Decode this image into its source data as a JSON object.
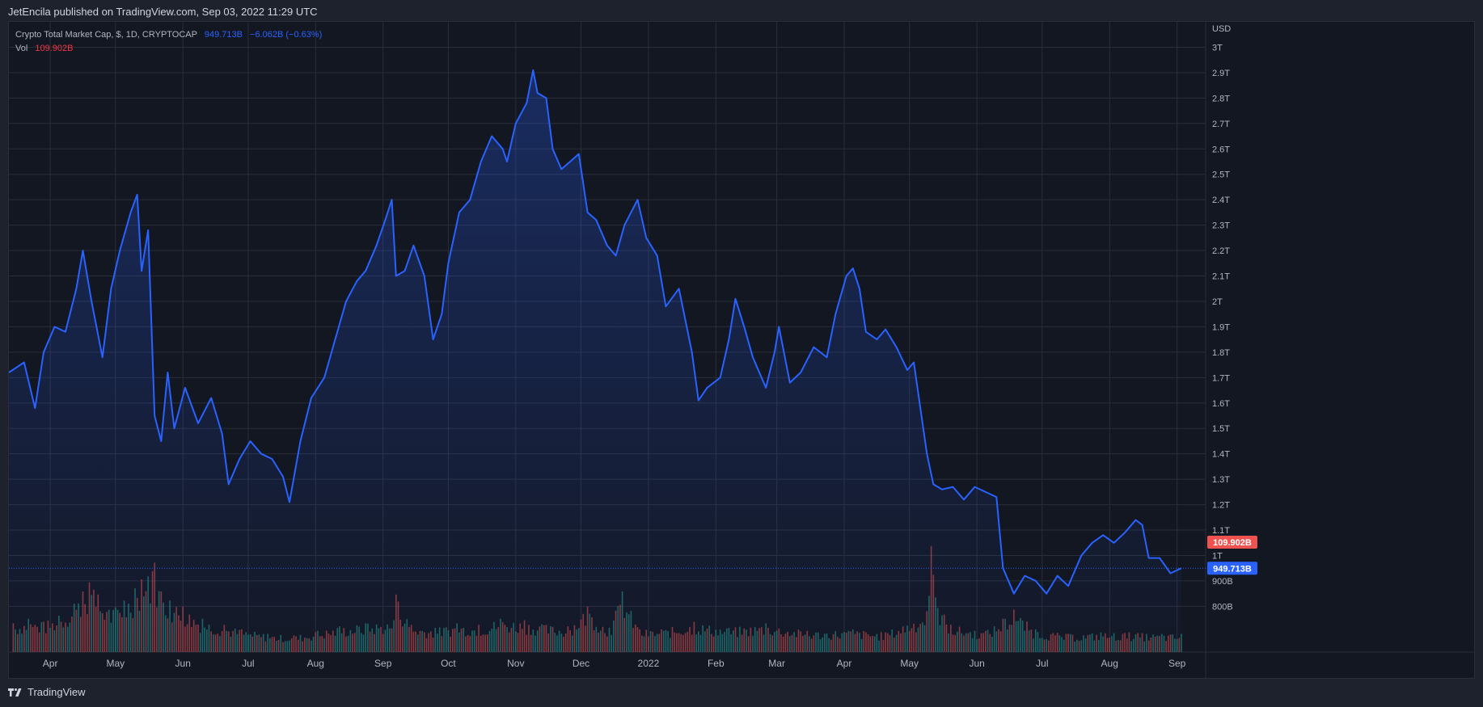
{
  "header": {
    "published": "JetEncila published on TradingView.com, Sep 03, 2022 11:29 UTC"
  },
  "legend": {
    "symbol": "Crypto Total Market Cap, $, 1D, CRYPTOCAP",
    "price": "949.713B",
    "change": "−6.062B (−0.63%)",
    "vol_label": "Vol",
    "vol_value": "109.902B"
  },
  "footer": {
    "brand": "TradingView",
    "logo_icon": "tradingview-logo-icon"
  },
  "colors": {
    "line": "#2962ff",
    "up_volume": "#26a69a",
    "down_volume": "#ef5350",
    "background": "#131722",
    "grid": "#2a2e39",
    "text": "#b2b5be"
  },
  "chart_data": {
    "type": "area",
    "currency_label": "USD",
    "y_ticks": [
      "800B",
      "900B",
      "1T",
      "1.1T",
      "1.2T",
      "1.3T",
      "1.4T",
      "1.5T",
      "1.6T",
      "1.7T",
      "1.8T",
      "1.9T",
      "2T",
      "2.1T",
      "2.2T",
      "2.3T",
      "2.4T",
      "2.5T",
      "2.6T",
      "2.7T",
      "2.8T",
      "2.9T",
      "3T"
    ],
    "y_tick_values": [
      0.8,
      0.9,
      1.0,
      1.1,
      1.2,
      1.3,
      1.4,
      1.5,
      1.6,
      1.7,
      1.8,
      1.9,
      2.0,
      2.1,
      2.2,
      2.3,
      2.4,
      2.5,
      2.6,
      2.7,
      2.8,
      2.9,
      3.0
    ],
    "ylim": [
      0.62,
      3.1
    ],
    "x_labels": [
      {
        "label": "Apr",
        "date": "2021-04-01"
      },
      {
        "label": "May",
        "date": "2021-05-01"
      },
      {
        "label": "Jun",
        "date": "2021-06-01"
      },
      {
        "label": "Jul",
        "date": "2021-07-01"
      },
      {
        "label": "Aug",
        "date": "2021-08-01"
      },
      {
        "label": "Sep",
        "date": "2021-09-01"
      },
      {
        "label": "Oct",
        "date": "2021-10-01"
      },
      {
        "label": "Nov",
        "date": "2021-11-01"
      },
      {
        "label": "Dec",
        "date": "2021-12-01"
      },
      {
        "label": "2022",
        "date": "2022-01-01"
      },
      {
        "label": "Feb",
        "date": "2022-02-01"
      },
      {
        "label": "Mar",
        "date": "2022-03-01"
      },
      {
        "label": "Apr",
        "date": "2022-04-01"
      },
      {
        "label": "May",
        "date": "2022-05-01"
      },
      {
        "label": "Jun",
        "date": "2022-06-01"
      },
      {
        "label": "Jul",
        "date": "2022-07-01"
      },
      {
        "label": "Aug",
        "date": "2022-08-01"
      },
      {
        "label": "Sep",
        "date": "2022-09-01"
      }
    ],
    "x_range": [
      "2021-03-13",
      "2022-09-03"
    ],
    "unit": "trillion USD",
    "series": [
      {
        "name": "Crypto Total Market Cap",
        "points": [
          [
            "2021-03-13",
            1.72
          ],
          [
            "2021-03-20",
            1.76
          ],
          [
            "2021-03-25",
            1.58
          ],
          [
            "2021-03-29",
            1.8
          ],
          [
            "2021-04-03",
            1.9
          ],
          [
            "2021-04-08",
            1.88
          ],
          [
            "2021-04-13",
            2.05
          ],
          [
            "2021-04-16",
            2.2
          ],
          [
            "2021-04-20",
            2.0
          ],
          [
            "2021-04-25",
            1.78
          ],
          [
            "2021-04-29",
            2.05
          ],
          [
            "2021-05-03",
            2.2
          ],
          [
            "2021-05-08",
            2.35
          ],
          [
            "2021-05-11",
            2.42
          ],
          [
            "2021-05-13",
            2.12
          ],
          [
            "2021-05-16",
            2.28
          ],
          [
            "2021-05-19",
            1.55
          ],
          [
            "2021-05-22",
            1.45
          ],
          [
            "2021-05-25",
            1.72
          ],
          [
            "2021-05-28",
            1.5
          ],
          [
            "2021-06-02",
            1.66
          ],
          [
            "2021-06-08",
            1.52
          ],
          [
            "2021-06-14",
            1.62
          ],
          [
            "2021-06-19",
            1.48
          ],
          [
            "2021-06-22",
            1.28
          ],
          [
            "2021-06-27",
            1.38
          ],
          [
            "2021-07-02",
            1.45
          ],
          [
            "2021-07-07",
            1.4
          ],
          [
            "2021-07-12",
            1.38
          ],
          [
            "2021-07-17",
            1.31
          ],
          [
            "2021-07-20",
            1.21
          ],
          [
            "2021-07-25",
            1.45
          ],
          [
            "2021-07-30",
            1.62
          ],
          [
            "2021-08-05",
            1.7
          ],
          [
            "2021-08-10",
            1.85
          ],
          [
            "2021-08-15",
            2.0
          ],
          [
            "2021-08-20",
            2.08
          ],
          [
            "2021-08-24",
            2.12
          ],
          [
            "2021-08-29",
            2.22
          ],
          [
            "2021-09-02",
            2.32
          ],
          [
            "2021-09-05",
            2.4
          ],
          [
            "2021-09-07",
            2.1
          ],
          [
            "2021-09-11",
            2.12
          ],
          [
            "2021-09-15",
            2.22
          ],
          [
            "2021-09-20",
            2.1
          ],
          [
            "2021-09-24",
            1.85
          ],
          [
            "2021-09-28",
            1.95
          ],
          [
            "2021-10-01",
            2.15
          ],
          [
            "2021-10-06",
            2.35
          ],
          [
            "2021-10-11",
            2.4
          ],
          [
            "2021-10-16",
            2.55
          ],
          [
            "2021-10-21",
            2.65
          ],
          [
            "2021-10-26",
            2.6
          ],
          [
            "2021-10-28",
            2.55
          ],
          [
            "2021-11-01",
            2.7
          ],
          [
            "2021-11-06",
            2.78
          ],
          [
            "2021-11-09",
            2.91
          ],
          [
            "2021-11-11",
            2.82
          ],
          [
            "2021-11-15",
            2.8
          ],
          [
            "2021-11-18",
            2.6
          ],
          [
            "2021-11-22",
            2.52
          ],
          [
            "2021-11-26",
            2.55
          ],
          [
            "2021-11-30",
            2.58
          ],
          [
            "2021-12-04",
            2.35
          ],
          [
            "2021-12-08",
            2.32
          ],
          [
            "2021-12-13",
            2.22
          ],
          [
            "2021-12-17",
            2.18
          ],
          [
            "2021-12-21",
            2.3
          ],
          [
            "2021-12-27",
            2.4
          ],
          [
            "2021-12-31",
            2.25
          ],
          [
            "2022-01-05",
            2.18
          ],
          [
            "2022-01-09",
            1.98
          ],
          [
            "2022-01-15",
            2.05
          ],
          [
            "2022-01-21",
            1.8
          ],
          [
            "2022-01-24",
            1.61
          ],
          [
            "2022-01-28",
            1.66
          ],
          [
            "2022-02-03",
            1.7
          ],
          [
            "2022-02-07",
            1.85
          ],
          [
            "2022-02-10",
            2.01
          ],
          [
            "2022-02-14",
            1.9
          ],
          [
            "2022-02-18",
            1.78
          ],
          [
            "2022-02-24",
            1.66
          ],
          [
            "2022-02-28",
            1.8
          ],
          [
            "2022-03-02",
            1.9
          ],
          [
            "2022-03-07",
            1.68
          ],
          [
            "2022-03-12",
            1.72
          ],
          [
            "2022-03-18",
            1.82
          ],
          [
            "2022-03-24",
            1.78
          ],
          [
            "2022-03-28",
            1.95
          ],
          [
            "2022-04-02",
            2.1
          ],
          [
            "2022-04-05",
            2.13
          ],
          [
            "2022-04-08",
            2.05
          ],
          [
            "2022-04-11",
            1.88
          ],
          [
            "2022-04-16",
            1.85
          ],
          [
            "2022-04-20",
            1.89
          ],
          [
            "2022-04-25",
            1.82
          ],
          [
            "2022-04-30",
            1.73
          ],
          [
            "2022-05-03",
            1.76
          ],
          [
            "2022-05-06",
            1.58
          ],
          [
            "2022-05-09",
            1.4
          ],
          [
            "2022-05-12",
            1.28
          ],
          [
            "2022-05-16",
            1.26
          ],
          [
            "2022-05-21",
            1.27
          ],
          [
            "2022-05-26",
            1.22
          ],
          [
            "2022-05-31",
            1.27
          ],
          [
            "2022-06-05",
            1.25
          ],
          [
            "2022-06-10",
            1.23
          ],
          [
            "2022-06-13",
            0.95
          ],
          [
            "2022-06-18",
            0.85
          ],
          [
            "2022-06-23",
            0.92
          ],
          [
            "2022-06-28",
            0.9
          ],
          [
            "2022-07-03",
            0.85
          ],
          [
            "2022-07-08",
            0.92
          ],
          [
            "2022-07-13",
            0.88
          ],
          [
            "2022-07-19",
            1.0
          ],
          [
            "2022-07-24",
            1.05
          ],
          [
            "2022-07-29",
            1.08
          ],
          [
            "2022-08-03",
            1.05
          ],
          [
            "2022-08-08",
            1.09
          ],
          [
            "2022-08-13",
            1.14
          ],
          [
            "2022-08-16",
            1.12
          ],
          [
            "2022-08-19",
            0.99
          ],
          [
            "2022-08-24",
            0.99
          ],
          [
            "2022-08-29",
            0.93
          ],
          [
            "2022-09-03",
            0.95
          ]
        ]
      }
    ],
    "volume": {
      "name": "Vol",
      "last_value": "109.902B",
      "bars": [
        {
          "date": "2021-03-15",
          "value": 95,
          "dir": "down"
        },
        {
          "date": "2021-03-22",
          "value": 110,
          "dir": "up"
        },
        {
          "date": "2021-03-29",
          "value": 100,
          "dir": "down"
        },
        {
          "date": "2021-04-05",
          "value": 120,
          "dir": "up"
        },
        {
          "date": "2021-04-12",
          "value": 160,
          "dir": "up"
        },
        {
          "date": "2021-04-16",
          "value": 200,
          "dir": "down"
        },
        {
          "date": "2021-04-19",
          "value": 230,
          "dir": "down"
        },
        {
          "date": "2021-04-23",
          "value": 190,
          "dir": "down"
        },
        {
          "date": "2021-04-28",
          "value": 140,
          "dir": "up"
        },
        {
          "date": "2021-05-05",
          "value": 170,
          "dir": "up"
        },
        {
          "date": "2021-05-10",
          "value": 210,
          "dir": "up"
        },
        {
          "date": "2021-05-13",
          "value": 240,
          "dir": "down"
        },
        {
          "date": "2021-05-16",
          "value": 250,
          "dir": "up"
        },
        {
          "date": "2021-05-19",
          "value": 295,
          "dir": "down"
        },
        {
          "date": "2021-05-22",
          "value": 200,
          "dir": "down"
        },
        {
          "date": "2021-05-26",
          "value": 170,
          "dir": "up"
        },
        {
          "date": "2021-06-01",
          "value": 150,
          "dir": "down"
        },
        {
          "date": "2021-06-10",
          "value": 110,
          "dir": "up"
        },
        {
          "date": "2021-06-20",
          "value": 90,
          "dir": "down"
        },
        {
          "date": "2021-06-28",
          "value": 75,
          "dir": "down"
        },
        {
          "date": "2021-07-10",
          "value": 60,
          "dir": "up"
        },
        {
          "date": "2021-07-22",
          "value": 55,
          "dir": "down"
        },
        {
          "date": "2021-08-02",
          "value": 70,
          "dir": "up"
        },
        {
          "date": "2021-08-12",
          "value": 85,
          "dir": "up"
        },
        {
          "date": "2021-08-24",
          "value": 95,
          "dir": "up"
        },
        {
          "date": "2021-09-06",
          "value": 105,
          "dir": "up"
        },
        {
          "date": "2021-09-07",
          "value": 190,
          "dir": "down"
        },
        {
          "date": "2021-09-14",
          "value": 90,
          "dir": "down"
        },
        {
          "date": "2021-09-25",
          "value": 80,
          "dir": "up"
        },
        {
          "date": "2021-10-05",
          "value": 95,
          "dir": "up"
        },
        {
          "date": "2021-10-15",
          "value": 90,
          "dir": "down"
        },
        {
          "date": "2021-10-25",
          "value": 110,
          "dir": "up"
        },
        {
          "date": "2021-11-05",
          "value": 105,
          "dir": "down"
        },
        {
          "date": "2021-11-15",
          "value": 90,
          "dir": "down"
        },
        {
          "date": "2021-11-25",
          "value": 85,
          "dir": "down"
        },
        {
          "date": "2021-12-04",
          "value": 150,
          "dir": "down"
        },
        {
          "date": "2021-12-14",
          "value": 80,
          "dir": "up"
        },
        {
          "date": "2021-12-20",
          "value": 200,
          "dir": "up"
        },
        {
          "date": "2021-12-28",
          "value": 75,
          "dir": "down"
        },
        {
          "date": "2022-01-07",
          "value": 75,
          "dir": "down"
        },
        {
          "date": "2022-01-22",
          "value": 100,
          "dir": "down"
        },
        {
          "date": "2022-02-07",
          "value": 80,
          "dir": "up"
        },
        {
          "date": "2022-02-24",
          "value": 95,
          "dir": "up"
        },
        {
          "date": "2022-03-15",
          "value": 70,
          "dir": "down"
        },
        {
          "date": "2022-04-05",
          "value": 75,
          "dir": "up"
        },
        {
          "date": "2022-04-20",
          "value": 65,
          "dir": "down"
        },
        {
          "date": "2022-05-09",
          "value": 135,
          "dir": "down"
        },
        {
          "date": "2022-05-11",
          "value": 350,
          "dir": "down"
        },
        {
          "date": "2022-05-13",
          "value": 180,
          "dir": "up"
        },
        {
          "date": "2022-05-20",
          "value": 90,
          "dir": "down"
        },
        {
          "date": "2022-06-05",
          "value": 70,
          "dir": "down"
        },
        {
          "date": "2022-06-13",
          "value": 110,
          "dir": "down"
        },
        {
          "date": "2022-06-18",
          "value": 140,
          "dir": "down"
        },
        {
          "date": "2022-06-28",
          "value": 75,
          "dir": "up"
        },
        {
          "date": "2022-07-12",
          "value": 60,
          "dir": "down"
        },
        {
          "date": "2022-07-28",
          "value": 65,
          "dir": "up"
        },
        {
          "date": "2022-08-10",
          "value": 65,
          "dir": "down"
        },
        {
          "date": "2022-08-25",
          "value": 60,
          "dir": "up"
        },
        {
          "date": "2022-09-03",
          "value": 60,
          "dir": "up"
        }
      ]
    },
    "current_price_label": "949.713B",
    "current_price_value": 0.9497,
    "current_volume_label": "109.902B"
  }
}
